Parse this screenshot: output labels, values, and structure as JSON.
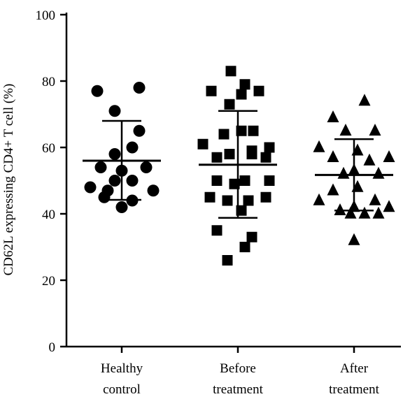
{
  "chart_data": {
    "type": "scatter",
    "ylabel": "CD62L expressing CD4+ T cell (%)",
    "xlabel": "",
    "ylim": [
      0,
      100
    ],
    "yticks": [
      0,
      20,
      40,
      60,
      80,
      100
    ],
    "grid": false,
    "legend": "none",
    "categories": [
      {
        "line1": "Healthy",
        "line2": "control"
      },
      {
        "line1": "Before",
        "line2": "treatment"
      },
      {
        "line1": "After",
        "line2": "treatment"
      }
    ],
    "groups": [
      {
        "marker": "circle",
        "mean": 56,
        "sd_low": 44.2,
        "sd_high": 68,
        "points": [
          [
            -0.35,
            77
          ],
          [
            0.25,
            78
          ],
          [
            -0.1,
            71
          ],
          [
            0.25,
            65
          ],
          [
            0.15,
            60
          ],
          [
            -0.1,
            58
          ],
          [
            -0.3,
            54
          ],
          [
            0.0,
            53
          ],
          [
            0.35,
            54
          ],
          [
            -0.1,
            50
          ],
          [
            0.15,
            50
          ],
          [
            -0.45,
            48
          ],
          [
            0.45,
            47
          ],
          [
            -0.2,
            47
          ],
          [
            -0.25,
            45
          ],
          [
            0.15,
            44
          ],
          [
            0.0,
            42
          ]
        ]
      },
      {
        "marker": "square",
        "mean": 54.8,
        "sd_low": 38.8,
        "sd_high": 71,
        "points": [
          [
            -0.1,
            83
          ],
          [
            0.1,
            79
          ],
          [
            0.3,
            77
          ],
          [
            -0.38,
            77
          ],
          [
            0.05,
            76
          ],
          [
            -0.12,
            73
          ],
          [
            0.05,
            65
          ],
          [
            0.22,
            65
          ],
          [
            -0.2,
            64
          ],
          [
            -0.5,
            61
          ],
          [
            0.45,
            60
          ],
          [
            0.2,
            59
          ],
          [
            -0.12,
            58
          ],
          [
            -0.3,
            57
          ],
          [
            0.2,
            58
          ],
          [
            0.4,
            57
          ],
          [
            0.45,
            50
          ],
          [
            -0.3,
            50
          ],
          [
            -0.05,
            49
          ],
          [
            0.1,
            50
          ],
          [
            0.4,
            45
          ],
          [
            -0.4,
            45
          ],
          [
            -0.15,
            44
          ],
          [
            0.15,
            44
          ],
          [
            0.05,
            41
          ],
          [
            -0.3,
            35
          ],
          [
            0.2,
            33
          ],
          [
            0.1,
            30
          ],
          [
            -0.15,
            26
          ]
        ]
      },
      {
        "marker": "triangle",
        "mean": 51.7,
        "sd_low": 41,
        "sd_high": 62.5,
        "points": [
          [
            0.15,
            74
          ],
          [
            -0.3,
            69
          ],
          [
            -0.12,
            65
          ],
          [
            0.3,
            65
          ],
          [
            -0.5,
            60
          ],
          [
            0.05,
            59
          ],
          [
            -0.3,
            57
          ],
          [
            0.5,
            57
          ],
          [
            0.22,
            56
          ],
          [
            0.0,
            53
          ],
          [
            -0.15,
            52
          ],
          [
            0.35,
            52
          ],
          [
            0.05,
            48
          ],
          [
            -0.3,
            47
          ],
          [
            -0.5,
            44
          ],
          [
            0.3,
            44
          ],
          [
            0.0,
            42
          ],
          [
            0.5,
            42
          ],
          [
            -0.2,
            41
          ],
          [
            -0.05,
            40
          ],
          [
            0.15,
            40
          ],
          [
            0.35,
            40
          ],
          [
            0.0,
            32
          ]
        ]
      }
    ]
  }
}
